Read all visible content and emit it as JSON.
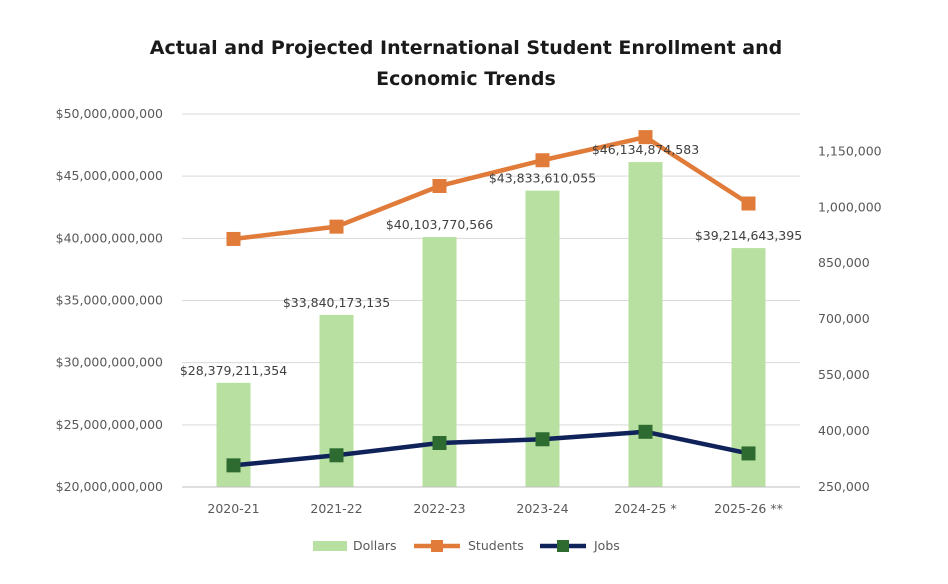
{
  "chart_data": {
    "type": "bar+line",
    "title": "Actual and Projected International Student Enrollment and Economic Trends",
    "title_lines": [
      "Actual and Projected International Student Enrollment and",
      "Economic Trends"
    ],
    "categories": [
      "2020-21",
      "2021-22",
      "2022-23",
      "2023-24",
      "2024-25 *",
      "2025-26 **"
    ],
    "y_left": {
      "min": 20000000000,
      "max": 50000000000,
      "ticks": [
        20000000000,
        25000000000,
        30000000000,
        35000000000,
        40000000000,
        45000000000,
        50000000000
      ],
      "tick_labels": [
        "$20,000,000,000",
        "$25,000,000,000",
        "$30,000,000,000",
        "$35,000,000,000",
        "$40,000,000,000",
        "$45,000,000,000",
        "$50,000,000,000"
      ]
    },
    "y_right": {
      "min": 250000,
      "max": 1250000,
      "ticks": [
        250000,
        400000,
        550000,
        700000,
        850000,
        1000000,
        1150000
      ],
      "tick_labels": [
        "250,000",
        "400,000",
        "550,000",
        "700,000",
        "850,000",
        "1,000,000",
        "1,150,000"
      ]
    },
    "series": [
      {
        "name": "Dollars",
        "type": "bar",
        "axis": "left",
        "color": "#b8e0a1",
        "values": [
          28379211354,
          33840173135,
          40103770566,
          43833610055,
          46134874583,
          39214643395
        ],
        "labels": [
          "$28,379,211,354",
          "$33,840,173,135",
          "$40,103,770,566",
          "$43,833,610,055",
          "$46,134,874,583",
          "$39,214,643,395"
        ]
      },
      {
        "name": "Students",
        "type": "line",
        "axis": "right",
        "color": "#e07b39",
        "values": [
          915000,
          948000,
          1057000,
          1126000,
          1188000,
          1010000
        ]
      },
      {
        "name": "Jobs",
        "type": "line",
        "axis": "right",
        "color": "#0f2259",
        "marker_color": "#2e6b30",
        "values": [
          308000,
          335000,
          368000,
          378000,
          398000,
          340000
        ]
      }
    ],
    "grid": true,
    "legend_position": "bottom"
  }
}
